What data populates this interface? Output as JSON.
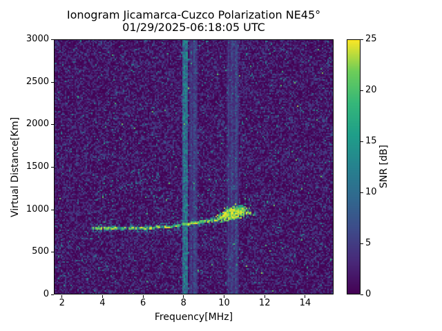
{
  "chart_data": {
    "type": "heatmap",
    "title": "Ionogram Jicamarca-Cuzco Polarization NE45°",
    "subtitle": "01/29/2025-06:18:05 UTC",
    "xlabel": "Frequency[MHz]",
    "ylabel": "Virtual Distance[Km]",
    "x_axis": {
      "range": [
        1.6,
        15.4
      ],
      "ticks": [
        2,
        4,
        6,
        8,
        10,
        12,
        14
      ],
      "unit": "MHz"
    },
    "y_axis": {
      "range": [
        0,
        3000
      ],
      "ticks": [
        0,
        500,
        1000,
        1500,
        2000,
        2500,
        3000
      ],
      "unit": "Km"
    },
    "colorbar": {
      "label": "SNR [dB]",
      "range": [
        0,
        25
      ],
      "ticks": [
        0,
        5,
        10,
        15,
        20,
        25
      ],
      "colormap": "viridis",
      "stops": [
        "#440154",
        "#482878",
        "#3e4a89",
        "#31688e",
        "#26828e",
        "#1f9e89",
        "#35b779",
        "#6dcd59",
        "#fde725"
      ]
    },
    "plot_background_color": "#440154",
    "features": {
      "main_echo_trace": {
        "description": "bright F-region echo trace",
        "snr_db": [
          18,
          25
        ],
        "points_mhz_km": [
          [
            3.3,
            775
          ],
          [
            4.0,
            776
          ],
          [
            5.0,
            778
          ],
          [
            6.0,
            776
          ],
          [
            7.0,
            780
          ],
          [
            7.5,
            795
          ],
          [
            8.0,
            815
          ],
          [
            8.6,
            835
          ],
          [
            9.2,
            855
          ],
          [
            9.7,
            875
          ],
          [
            10.2,
            910
          ],
          [
            10.6,
            935
          ],
          [
            11.0,
            950
          ],
          [
            11.4,
            945
          ],
          [
            11.8,
            935
          ]
        ]
      },
      "spread_f_blob": {
        "description": "diffuse spread-echo cluster at trace tip",
        "freq_range_mhz": [
          9.4,
          11.6
        ],
        "km_range": [
          830,
          1090
        ],
        "center_mhz": 10.45,
        "snr_db": [
          10,
          25
        ]
      },
      "faint_scatter_trace": {
        "description": "weak oblique scatter trace",
        "snr_db": [
          7,
          13
        ],
        "points_mhz_km": [
          [
            3.9,
            1170
          ],
          [
            7.0,
            1400
          ]
        ]
      },
      "interference_bands": [
        {
          "freq_range_mhz": [
            7.95,
            8.2
          ],
          "snr_db": [
            8,
            13
          ],
          "strength": "strong"
        },
        {
          "freq_range_mhz": [
            8.25,
            8.7
          ],
          "snr_db": [
            4,
            10
          ],
          "strength": "medium"
        },
        {
          "freq_range_mhz": [
            10.15,
            10.75
          ],
          "snr_db": [
            3,
            7
          ],
          "strength": "weak"
        }
      ],
      "noise": {
        "description": "background speckle noise",
        "snr_db": [
          0,
          14
        ]
      }
    }
  }
}
